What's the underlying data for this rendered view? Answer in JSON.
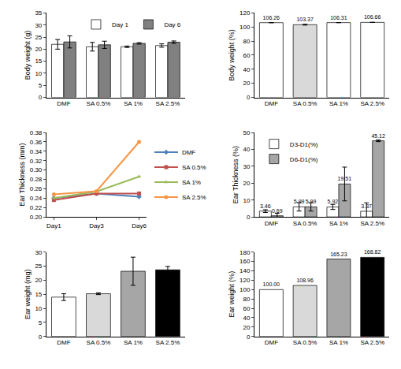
{
  "chart_data": [
    {
      "type": "bar",
      "y_label": "Body weight (g)",
      "categories": [
        "DMF",
        "SA 0.5%",
        "SA 1%",
        "SA 2.5%"
      ],
      "series": [
        {
          "name": "Day 1",
          "color": "#ffffff",
          "values": [
            22,
            21,
            21,
            21.5
          ],
          "errors": [
            2,
            1.8,
            0.3,
            0.7
          ]
        },
        {
          "name": "Day 6",
          "color": "#808080",
          "values": [
            23,
            21.8,
            22.4,
            22.9
          ],
          "errors": [
            2.5,
            1.5,
            0.3,
            0.5
          ]
        }
      ],
      "ylim": [
        0,
        35
      ],
      "yticks": [
        0,
        5,
        10,
        15,
        20,
        25,
        30,
        35
      ],
      "grid": false,
      "legend": "upper right"
    },
    {
      "type": "bar",
      "y_label": "Body weight (%)",
      "categories": [
        "DMF",
        "SA 0.5%",
        "SA 1%",
        "SA 2.5%"
      ],
      "values": [
        106.26,
        103.37,
        106.31,
        106.66
      ],
      "errors": [
        null,
        0.6,
        null,
        null
      ],
      "colors": [
        "#ffffff",
        "#d9d9d9",
        "#ffffff",
        "#ffffff"
      ],
      "ylim": [
        0,
        120
      ],
      "yticks": [
        0,
        20,
        40,
        60,
        80,
        100,
        120
      ],
      "grid": false,
      "data_labels": true
    },
    {
      "type": "line",
      "y_label": "Ear Thickness (mm)",
      "categories": [
        "Day1",
        "Day3",
        "Day6"
      ],
      "series": [
        {
          "name": "DMF",
          "color": "#4f81bd",
          "marker": "diamond",
          "values": [
            0.24,
            0.25,
            0.243
          ]
        },
        {
          "name": "SA 0.5%",
          "color": "#c0504d",
          "marker": "square",
          "values": [
            0.236,
            0.25,
            0.25
          ]
        },
        {
          "name": "SA 1%",
          "color": "#9bbb59",
          "marker": "triangle-up",
          "values": [
            0.24,
            0.254,
            0.286
          ]
        },
        {
          "name": "SA 2.5%",
          "color": "#f79646",
          "marker": "circle",
          "values": [
            0.248,
            0.255,
            0.36
          ]
        }
      ],
      "ylim": [
        0.2,
        0.38
      ],
      "yticks": [
        {
          "value": 0.2,
          "label": "0.20"
        },
        0.22,
        0.24,
        0.26,
        0.28,
        {
          "value": 0.3,
          "label": "0.30"
        },
        0.32,
        0.34,
        0.36,
        0.38
      ],
      "grid": false,
      "legend": "right"
    },
    {
      "type": "bar",
      "y_label": "Ear Thickness (%)",
      "categories": [
        "DMF",
        "SA 0.5%",
        "SA 1%",
        "SA 2.5%"
      ],
      "series": [
        {
          "name": "D3-D1(%)",
          "color": "#ffffff",
          "values": [
            3.46,
            5.99,
            5.92,
            3.37
          ],
          "errors": [
            0.8,
            2.5,
            1.5,
            5
          ]
        },
        {
          "name": "D6-D1(%)",
          "color": "#a6a6a6",
          "values": [
            0.69,
            5.99,
            19.51,
            45.12
          ],
          "errors": [
            1.5,
            2.5,
            10,
            0.5
          ]
        }
      ],
      "ylim": [
        0,
        50
      ],
      "yticks": [
        0,
        10,
        20,
        30,
        40,
        50
      ],
      "grid": false,
      "legend": "upper left",
      "data_labels": true
    },
    {
      "type": "bar",
      "y_label": "Ear weight (mg)",
      "categories": [
        "DMF",
        "SA 0.5%",
        "SA 1%",
        "SA 2.5%"
      ],
      "values": [
        14,
        15.2,
        23.2,
        23.7
      ],
      "errors": [
        1.2,
        0.3,
        5,
        1.2
      ],
      "colors": [
        "#ffffff",
        "#d9d9d9",
        "#a6a6a6",
        "#000000"
      ],
      "ylim": [
        0,
        30
      ],
      "yticks": [
        0,
        5,
        10,
        15,
        20,
        25,
        30
      ],
      "grid": false
    },
    {
      "type": "bar",
      "y_label": "Ear weight (%)",
      "categories": [
        "DMF",
        "SA 0.5%",
        "SA 1%",
        "SA 2.5%"
      ],
      "values": [
        100,
        108.96,
        165.23,
        168.82
      ],
      "value_labels": [
        "100.00",
        "108.96",
        "165.23",
        "168.82"
      ],
      "colors": [
        "#ffffff",
        "#d9d9d9",
        "#a6a6a6",
        "#000000"
      ],
      "ylim": [
        0,
        180
      ],
      "yticks": [
        0,
        20,
        40,
        60,
        80,
        100,
        120,
        140,
        160,
        180
      ],
      "grid": false,
      "data_labels": true
    }
  ]
}
